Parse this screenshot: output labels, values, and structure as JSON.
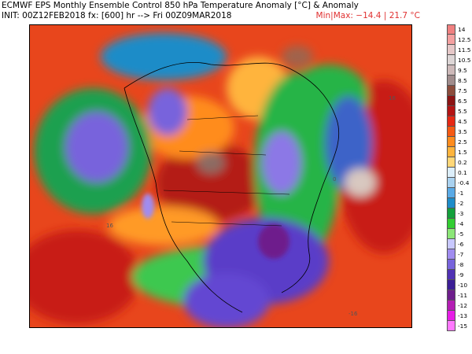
{
  "header": {
    "title": "ECMWF EPS Monthly Ensemble Control 850 hPa Temperature Anomaly [°C] & Anomaly",
    "init": "INIT: 00Z12FEB2018 fx: [600] hr --> Fri 00Z09MAR2018",
    "minmax": "Min|Max: −14.4 | 21.7 °C"
  },
  "map": {
    "contour_labels": [
      "16",
      "16",
      "0",
      "-16"
    ]
  },
  "colorbar": {
    "labels": [
      "14",
      "12.5",
      "11.5",
      "10.5",
      "9.5",
      "8.5",
      "7.5",
      "6.5",
      "5.5",
      "4.5",
      "3.5",
      "2.5",
      "1.5",
      "0.2",
      "0.1",
      "-0.4",
      "-1",
      "-2",
      "-3",
      "-4",
      "-5",
      "-6",
      "-7",
      "-8",
      "-9",
      "-10",
      "-11",
      "-12",
      "-13",
      "-15"
    ],
    "colors": [
      "#f08080",
      "#f4a0a0",
      "#e6c8c8",
      "#ddd6d6",
      "#cdb9b9",
      "#a08c8c",
      "#8c4c3c",
      "#8c1414",
      "#b41414",
      "#e62814",
      "#f55a14",
      "#ff8c1e",
      "#ffb43c",
      "#ffd778",
      "#dceefa",
      "#aad2f0",
      "#5aaae6",
      "#1e8cc8",
      "#14a03c",
      "#32cd32",
      "#8ce678",
      "#c8c8ff",
      "#a08cf0",
      "#7864dc",
      "#5032b4",
      "#3c1e96",
      "#6e1e8c",
      "#b41eb4",
      "#e61ee6",
      "#ff78ff"
    ]
  }
}
